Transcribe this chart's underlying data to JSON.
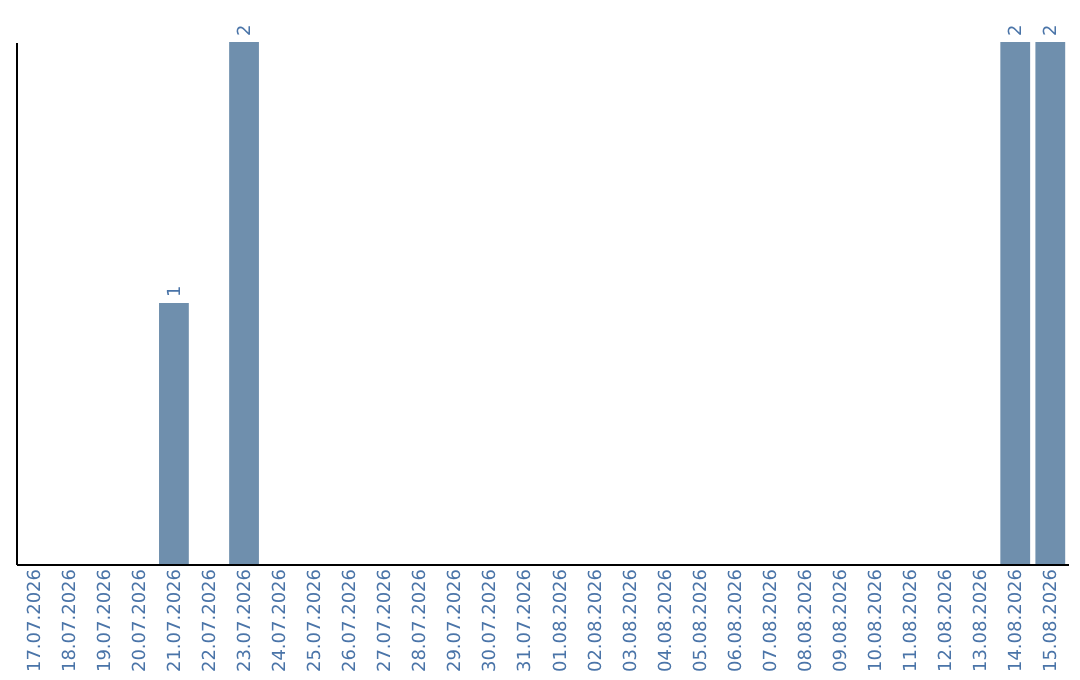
{
  "chart_data": {
    "type": "bar",
    "categories": [
      "17.07.2026",
      "18.07.2026",
      "19.07.2026",
      "20.07.2026",
      "21.07.2026",
      "22.07.2026",
      "23.07.2026",
      "24.07.2026",
      "25.07.2026",
      "26.07.2026",
      "27.07.2026",
      "28.07.2026",
      "29.07.2026",
      "30.07.2026",
      "31.07.2026",
      "01.08.2026",
      "02.08.2026",
      "03.08.2026",
      "04.08.2026",
      "05.08.2026",
      "06.08.2026",
      "07.08.2026",
      "08.08.2026",
      "09.08.2026",
      "10.08.2026",
      "11.08.2026",
      "12.08.2026",
      "13.08.2026",
      "14.08.2026",
      "15.08.2026"
    ],
    "values": [
      0,
      0,
      0,
      0,
      1,
      0,
      2,
      0,
      0,
      0,
      0,
      0,
      0,
      0,
      0,
      0,
      0,
      0,
      0,
      0,
      0,
      0,
      0,
      0,
      0,
      0,
      0,
      0,
      2,
      2
    ],
    "value_labels": [
      null,
      null,
      null,
      null,
      "1",
      null,
      "2",
      null,
      null,
      null,
      null,
      null,
      null,
      null,
      null,
      null,
      null,
      null,
      null,
      null,
      null,
      null,
      null,
      null,
      null,
      null,
      null,
      null,
      "2",
      "2"
    ],
    "color": "#6f8fad",
    "ylim": [
      0,
      2
    ],
    "tick_labels": "x",
    "grid": false
  }
}
